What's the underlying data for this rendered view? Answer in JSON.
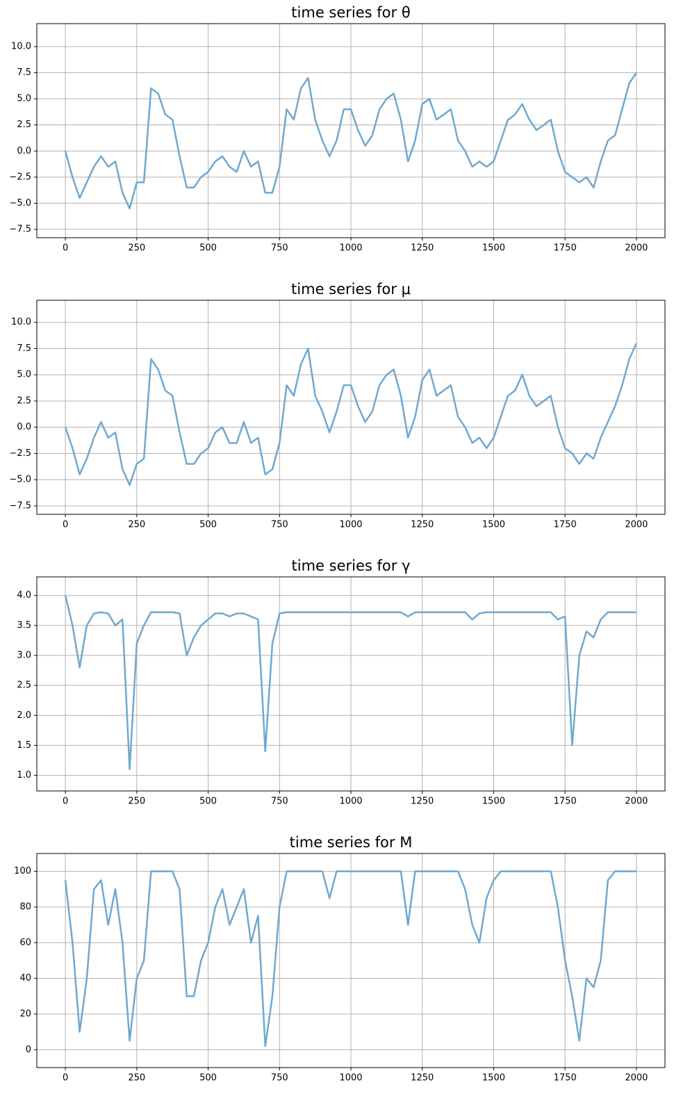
{
  "chart_data": [
    {
      "type": "line",
      "title": "time series for θ",
      "x": [
        0,
        25,
        50,
        75,
        100,
        125,
        150,
        175,
        200,
        225,
        250,
        275,
        300,
        325,
        350,
        375,
        400,
        425,
        450,
        475,
        500,
        525,
        550,
        575,
        600,
        625,
        650,
        675,
        700,
        725,
        750,
        775,
        800,
        825,
        850,
        875,
        900,
        925,
        950,
        975,
        1000,
        1025,
        1050,
        1075,
        1100,
        1125,
        1150,
        1175,
        1200,
        1225,
        1250,
        1275,
        1300,
        1325,
        1350,
        1375,
        1400,
        1425,
        1450,
        1475,
        1500,
        1525,
        1550,
        1575,
        1600,
        1625,
        1650,
        1675,
        1700,
        1725,
        1750,
        1775,
        1800,
        1825,
        1850,
        1875,
        1900,
        1925,
        1950,
        1975,
        2000
      ],
      "series": [
        {
          "color": "#6fa8d0",
          "values": [
            0,
            -2.5,
            -4.5,
            -3,
            -1.5,
            -0.5,
            -1.5,
            -1,
            -4,
            -5.5,
            -3,
            -3,
            6,
            5.5,
            3.5,
            3,
            -0.5,
            -3.5,
            -3.5,
            -2.5,
            -2,
            -1,
            -0.5,
            -1.5,
            -2,
            0,
            -1.5,
            -1,
            -4,
            -4,
            -1.5,
            4,
            3,
            6,
            7,
            3,
            1,
            -0.5,
            1,
            4,
            4,
            2,
            0.5,
            1.5,
            4,
            5,
            5.5,
            3,
            -1,
            1,
            4.5,
            5,
            3,
            3.5,
            4,
            1,
            0,
            -1.5,
            -1,
            -1.5,
            -1,
            1,
            3,
            3.5,
            4.5,
            3,
            2,
            2.5,
            3,
            0,
            -2,
            -2.5,
            -3,
            -2.5,
            -3.5,
            -1,
            1,
            1.5,
            4,
            6.5,
            7.5
          ]
        }
      ],
      "xlim": [
        -100,
        2100
      ],
      "xticks": [
        0,
        250,
        500,
        750,
        1000,
        1250,
        1500,
        1750,
        2000
      ],
      "ylim": [
        -8.3,
        12.2
      ],
      "yticks": [
        {
          "value": -7.5,
          "label": "−7.5"
        },
        {
          "value": -5,
          "label": "−5.0"
        },
        {
          "value": -2.5,
          "label": "−2.5"
        },
        {
          "value": 0,
          "label": "0.0"
        },
        {
          "value": 2.5,
          "label": "2.5"
        },
        {
          "value": 5,
          "label": "5.0"
        },
        {
          "value": 7.5,
          "label": "7.5"
        },
        {
          "value": 10,
          "label": "10.0"
        }
      ],
      "grid": true
    },
    {
      "type": "line",
      "title": "time series for μ",
      "x": [
        0,
        25,
        50,
        75,
        100,
        125,
        150,
        175,
        200,
        225,
        250,
        275,
        300,
        325,
        350,
        375,
        400,
        425,
        450,
        475,
        500,
        525,
        550,
        575,
        600,
        625,
        650,
        675,
        700,
        725,
        750,
        775,
        800,
        825,
        850,
        875,
        900,
        925,
        950,
        975,
        1000,
        1025,
        1050,
        1075,
        1100,
        1125,
        1150,
        1175,
        1200,
        1225,
        1250,
        1275,
        1300,
        1325,
        1350,
        1375,
        1400,
        1425,
        1450,
        1475,
        1500,
        1525,
        1550,
        1575,
        1600,
        1625,
        1650,
        1675,
        1700,
        1725,
        1750,
        1775,
        1800,
        1825,
        1850,
        1875,
        1900,
        1925,
        1950,
        1975,
        2000
      ],
      "series": [
        {
          "color": "#6fa8d0",
          "values": [
            0,
            -2,
            -4.5,
            -3,
            -1,
            0.5,
            -1,
            -0.5,
            -4,
            -5.5,
            -3.5,
            -3,
            6.5,
            5.5,
            3.5,
            3,
            -0.5,
            -3.5,
            -3.5,
            -2.5,
            -2,
            -0.5,
            0,
            -1.5,
            -1.5,
            0.5,
            -1.5,
            -1,
            -4.5,
            -4,
            -1.5,
            4,
            3,
            6,
            7.5,
            3,
            1.5,
            -0.5,
            1.5,
            4,
            4,
            2,
            0.5,
            1.5,
            4,
            5,
            5.5,
            3,
            -1,
            1,
            4.5,
            5.5,
            3,
            3.5,
            4,
            1,
            0,
            -1.5,
            -1,
            -2,
            -1,
            1,
            3,
            3.5,
            5,
            3,
            2,
            2.5,
            3,
            0,
            -2,
            -2.5,
            -3.5,
            -2.5,
            -3,
            -1,
            0.5,
            2,
            4,
            6.5,
            8
          ]
        }
      ],
      "xlim": [
        -100,
        2100
      ],
      "xticks": [
        0,
        250,
        500,
        750,
        1000,
        1250,
        1500,
        1750,
        2000
      ],
      "ylim": [
        -8.3,
        12.1
      ],
      "yticks": [
        {
          "value": -7.5,
          "label": "−7.5"
        },
        {
          "value": -5,
          "label": "−5.0"
        },
        {
          "value": -2.5,
          "label": "−2.5"
        },
        {
          "value": 0,
          "label": "0.0"
        },
        {
          "value": 2.5,
          "label": "2.5"
        },
        {
          "value": 5,
          "label": "5.0"
        },
        {
          "value": 7.5,
          "label": "7.5"
        },
        {
          "value": 10,
          "label": "10.0"
        }
      ],
      "grid": true
    },
    {
      "type": "line",
      "title": "time series for γ",
      "x": [
        0,
        25,
        50,
        75,
        100,
        125,
        150,
        175,
        200,
        225,
        250,
        275,
        300,
        325,
        350,
        375,
        400,
        425,
        450,
        475,
        500,
        525,
        550,
        575,
        600,
        625,
        650,
        675,
        700,
        725,
        750,
        775,
        800,
        825,
        850,
        875,
        900,
        925,
        950,
        975,
        1000,
        1025,
        1050,
        1075,
        1100,
        1125,
        1150,
        1175,
        1200,
        1225,
        1250,
        1275,
        1300,
        1325,
        1350,
        1375,
        1400,
        1425,
        1450,
        1475,
        1500,
        1525,
        1550,
        1575,
        1600,
        1625,
        1650,
        1675,
        1700,
        1725,
        1750,
        1775,
        1800,
        1825,
        1850,
        1875,
        1900,
        1925,
        1950,
        1975,
        2000
      ],
      "series": [
        {
          "color": "#6fa8d0",
          "values": [
            4.0,
            3.5,
            2.8,
            3.5,
            3.7,
            3.72,
            3.7,
            3.5,
            3.6,
            1.1,
            3.2,
            3.5,
            3.72,
            3.72,
            3.72,
            3.72,
            3.7,
            3.0,
            3.3,
            3.5,
            3.6,
            3.7,
            3.7,
            3.65,
            3.7,
            3.7,
            3.65,
            3.6,
            1.4,
            3.2,
            3.7,
            3.72,
            3.72,
            3.72,
            3.72,
            3.72,
            3.72,
            3.72,
            3.72,
            3.72,
            3.72,
            3.72,
            3.72,
            3.72,
            3.72,
            3.72,
            3.72,
            3.72,
            3.65,
            3.72,
            3.72,
            3.72,
            3.72,
            3.72,
            3.72,
            3.72,
            3.72,
            3.6,
            3.7,
            3.72,
            3.72,
            3.72,
            3.72,
            3.72,
            3.72,
            3.72,
            3.72,
            3.72,
            3.72,
            3.6,
            3.65,
            1.5,
            3.0,
            3.4,
            3.3,
            3.6,
            3.72,
            3.72,
            3.72,
            3.72,
            3.72
          ]
        }
      ],
      "xlim": [
        -100,
        2100
      ],
      "xticks": [
        0,
        250,
        500,
        750,
        1000,
        1250,
        1500,
        1750,
        2000
      ],
      "ylim": [
        0.74,
        4.31
      ],
      "yticks": [
        {
          "value": 1,
          "label": "1.0"
        },
        1.5,
        {
          "value": 2,
          "label": "2.0"
        },
        2.5,
        {
          "value": 3,
          "label": "3.0"
        },
        3.5,
        {
          "value": 4,
          "label": "4.0"
        }
      ],
      "grid": true
    },
    {
      "type": "line",
      "title": "time series for M",
      "x": [
        0,
        25,
        50,
        75,
        100,
        125,
        150,
        175,
        200,
        225,
        250,
        275,
        300,
        325,
        350,
        375,
        400,
        425,
        450,
        475,
        500,
        525,
        550,
        575,
        600,
        625,
        650,
        675,
        700,
        725,
        750,
        775,
        800,
        825,
        850,
        875,
        900,
        925,
        950,
        975,
        1000,
        1025,
        1050,
        1075,
        1100,
        1125,
        1150,
        1175,
        1200,
        1225,
        1250,
        1275,
        1300,
        1325,
        1350,
        1375,
        1400,
        1425,
        1450,
        1475,
        1500,
        1525,
        1550,
        1575,
        1600,
        1625,
        1650,
        1675,
        1700,
        1725,
        1750,
        1775,
        1800,
        1825,
        1850,
        1875,
        1900,
        1925,
        1950,
        1975,
        2000
      ],
      "series": [
        {
          "color": "#6fa8d0",
          "values": [
            95,
            60,
            10,
            40,
            90,
            95,
            70,
            90,
            60,
            5,
            40,
            50,
            100,
            100,
            100,
            100,
            90,
            30,
            30,
            50,
            60,
            80,
            90,
            70,
            80,
            90,
            60,
            75,
            2,
            30,
            80,
            100,
            100,
            100,
            100,
            100,
            100,
            85,
            100,
            100,
            100,
            100,
            100,
            100,
            100,
            100,
            100,
            100,
            70,
            100,
            100,
            100,
            100,
            100,
            100,
            100,
            90,
            70,
            60,
            85,
            95,
            100,
            100,
            100,
            100,
            100,
            100,
            100,
            100,
            80,
            50,
            30,
            5,
            40,
            35,
            50,
            95,
            100,
            100,
            100,
            100
          ]
        }
      ],
      "xlim": [
        -100,
        2100
      ],
      "xticks": [
        0,
        250,
        500,
        750,
        1000,
        1250,
        1500,
        1750,
        2000
      ],
      "ylim": [
        -10,
        110
      ],
      "yticks": [
        0,
        20,
        40,
        60,
        80,
        100
      ],
      "grid": true
    }
  ]
}
